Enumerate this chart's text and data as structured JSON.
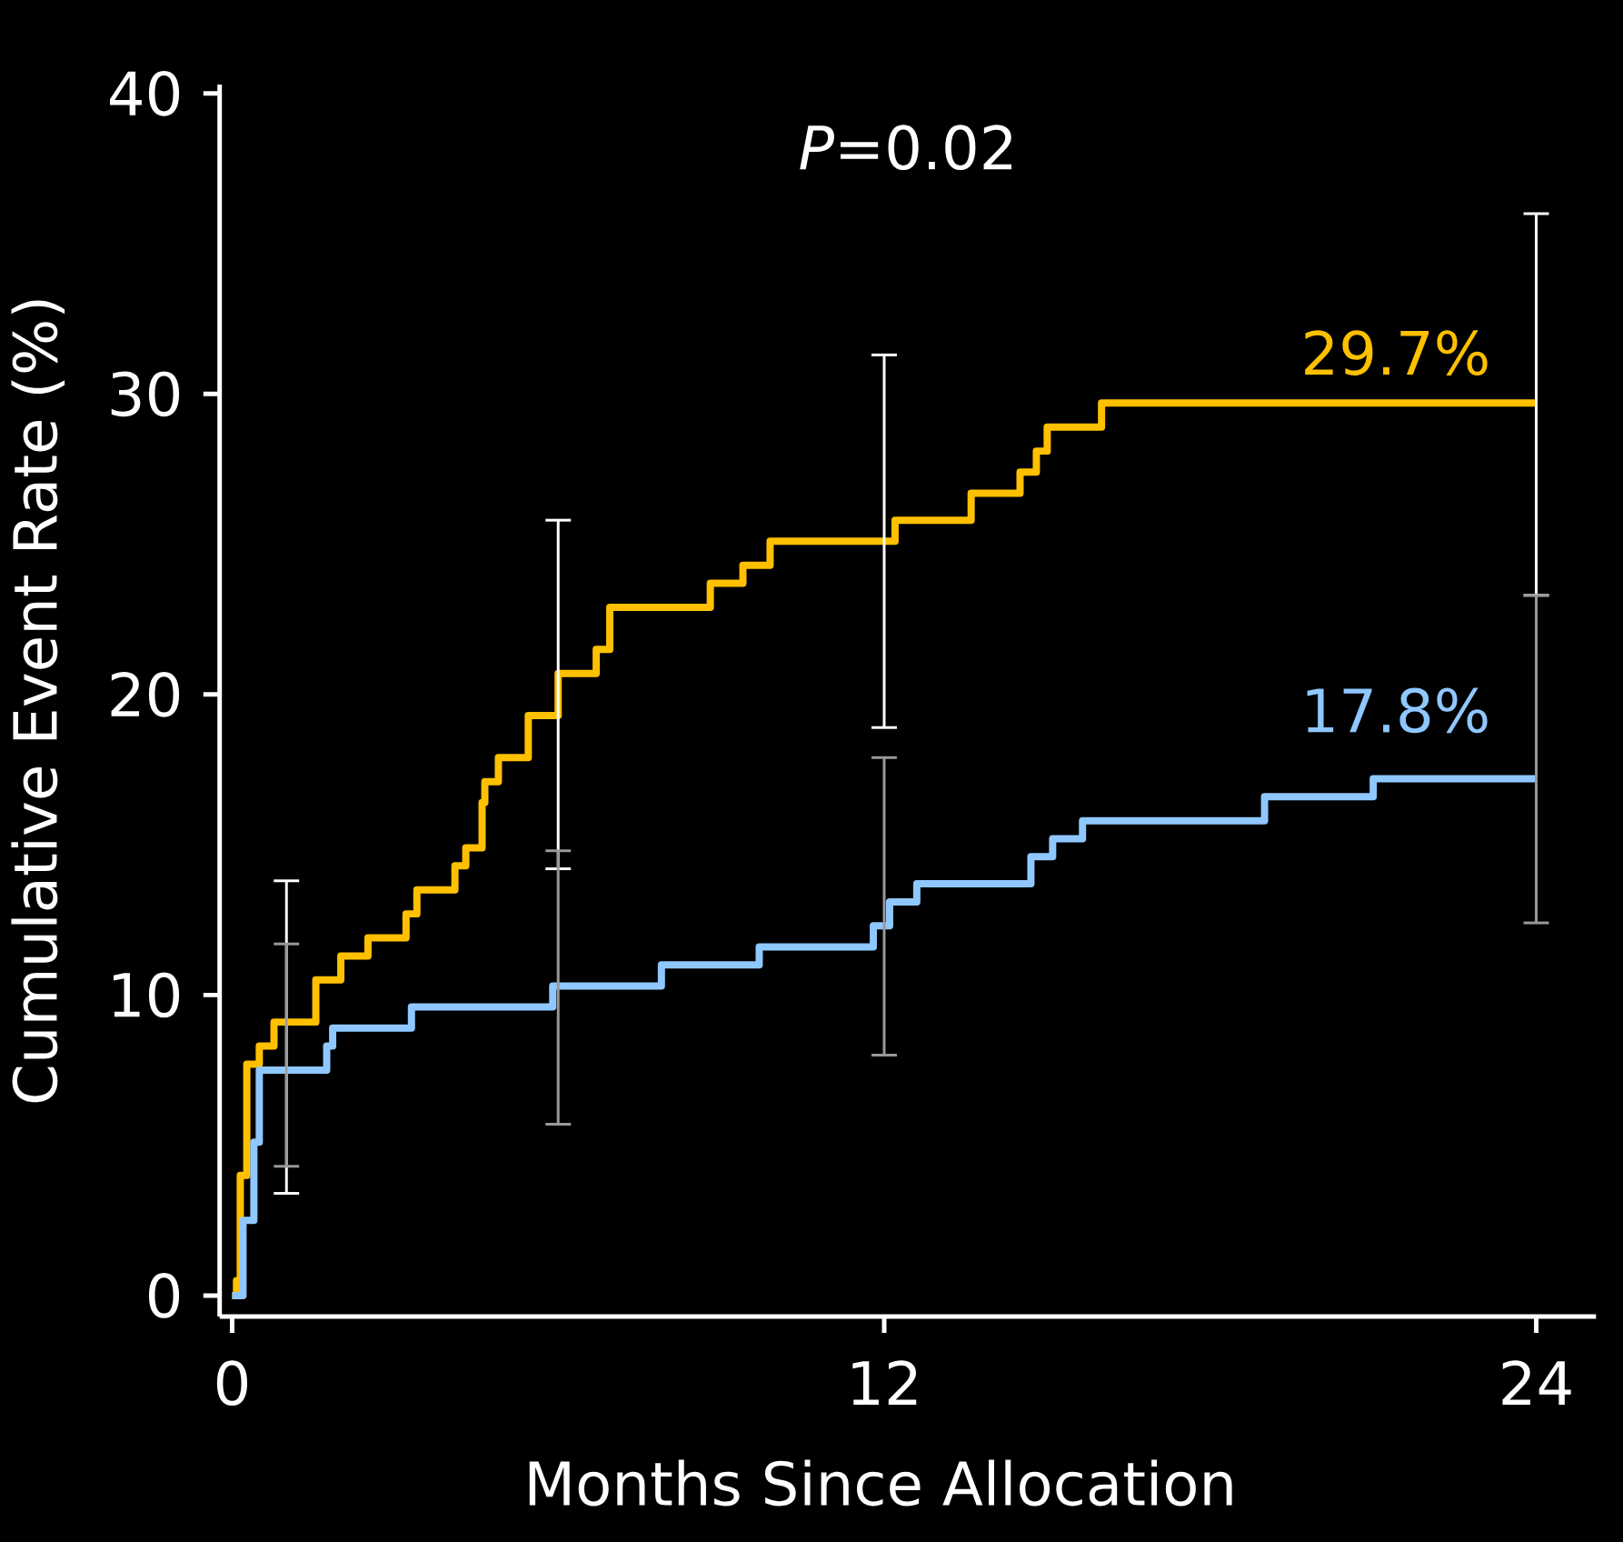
{
  "chart_data": {
    "type": "step",
    "title": "*P*=0.02",
    "xlabel": "Months Since Allocation",
    "ylabel": "Cumulative Event Rate (%)",
    "xlim": [
      -0.23,
      25.1
    ],
    "ylim": [
      -0.7,
      40.3
    ],
    "xticks": [
      0,
      12,
      24
    ],
    "yticks": [
      0,
      10,
      20,
      30,
      40
    ],
    "series": [
      {
        "color": "#ffc000",
        "x": [
          0,
          0.08,
          0.15,
          0.27,
          0.5,
          0.77,
          1,
          1.54,
          2,
          2.5,
          3.2,
          3.4,
          4.1,
          4.3,
          4.6,
          4.65,
          4.9,
          5.45,
          6,
          6.7,
          6.95,
          8.8,
          9.4,
          9.9,
          12,
          12.2,
          13.6,
          14.5,
          14.8,
          15,
          16,
          24
        ],
        "values": [
          0,
          0.5,
          4,
          7.7,
          8.3,
          9.1,
          9.1,
          10.5,
          11.3,
          11.9,
          12.7,
          13.5,
          14.3,
          14.9,
          16.4,
          17.1,
          17.9,
          19.3,
          20.7,
          21.5,
          22.9,
          23.7,
          24.3,
          25.1,
          25.1,
          25.8,
          26.7,
          27.4,
          28.1,
          28.9,
          29.7,
          29.7
        ],
        "errors": [
          null,
          null,
          null,
          null,
          null,
          null,
          [
            3.4,
            13.8
          ],
          null,
          null,
          null,
          null,
          null,
          null,
          null,
          null,
          null,
          null,
          null,
          [
            14.2,
            25.8
          ],
          null,
          null,
          null,
          null,
          null,
          [
            18.9,
            31.3
          ],
          null,
          null,
          null,
          null,
          null,
          null,
          [
            23.3,
            36.0
          ]
        ]
      },
      {
        "color": "#8fc7ff",
        "x": [
          0,
          0.2,
          0.4,
          0.5,
          1,
          1.74,
          1.85,
          3.3,
          5.9,
          6,
          7.9,
          9.7,
          11.8,
          12,
          12.1,
          12.6,
          14.7,
          15.1,
          15.65,
          19,
          21,
          24
        ],
        "values": [
          0,
          2.5,
          5.1,
          7.5,
          7.5,
          8.3,
          8.9,
          9.6,
          10.3,
          10.3,
          11,
          11.6,
          12.3,
          12.3,
          13.1,
          13.7,
          14.6,
          15.2,
          15.8,
          16.6,
          17.2,
          17.2
        ],
        "errors": [
          null,
          null,
          null,
          null,
          [
            4.3,
            11.7
          ],
          null,
          null,
          null,
          null,
          [
            5.7,
            14.8
          ],
          null,
          null,
          null,
          [
            8.0,
            17.9
          ],
          null,
          null,
          null,
          null,
          null,
          null,
          null,
          [
            12.4,
            23.3
          ]
        ]
      }
    ],
    "annotations": [
      {
        "text": "29.7%",
        "x": 24,
        "y": 29.7
      },
      {
        "text": "17.8%",
        "x": 24,
        "y": 17.8
      }
    ]
  }
}
